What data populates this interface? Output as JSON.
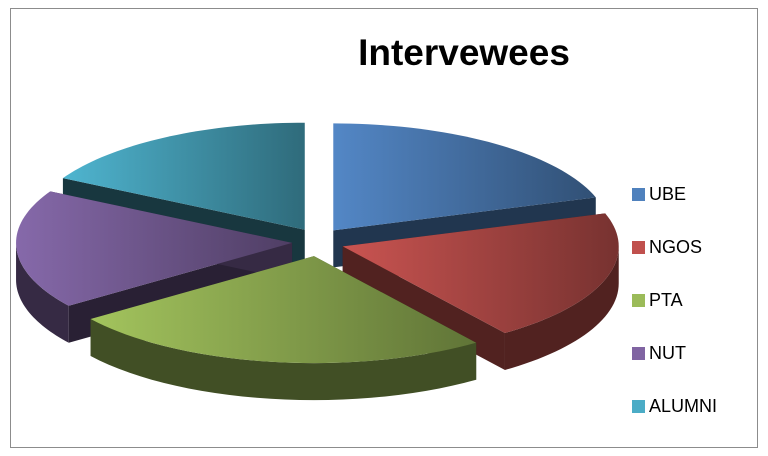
{
  "chart_data": {
    "type": "pie",
    "title": "Intervewees",
    "categories": [
      "UBE",
      "NGOS",
      "PTA",
      "NUT",
      "ALUMNI"
    ],
    "values": [
      20,
      20,
      25,
      18,
      17
    ],
    "colors": [
      "#4f81bd",
      "#c0504d",
      "#9bbb59",
      "#8064a2",
      "#4bacc6"
    ],
    "exploded": true,
    "three_d": true,
    "legend": "right"
  }
}
